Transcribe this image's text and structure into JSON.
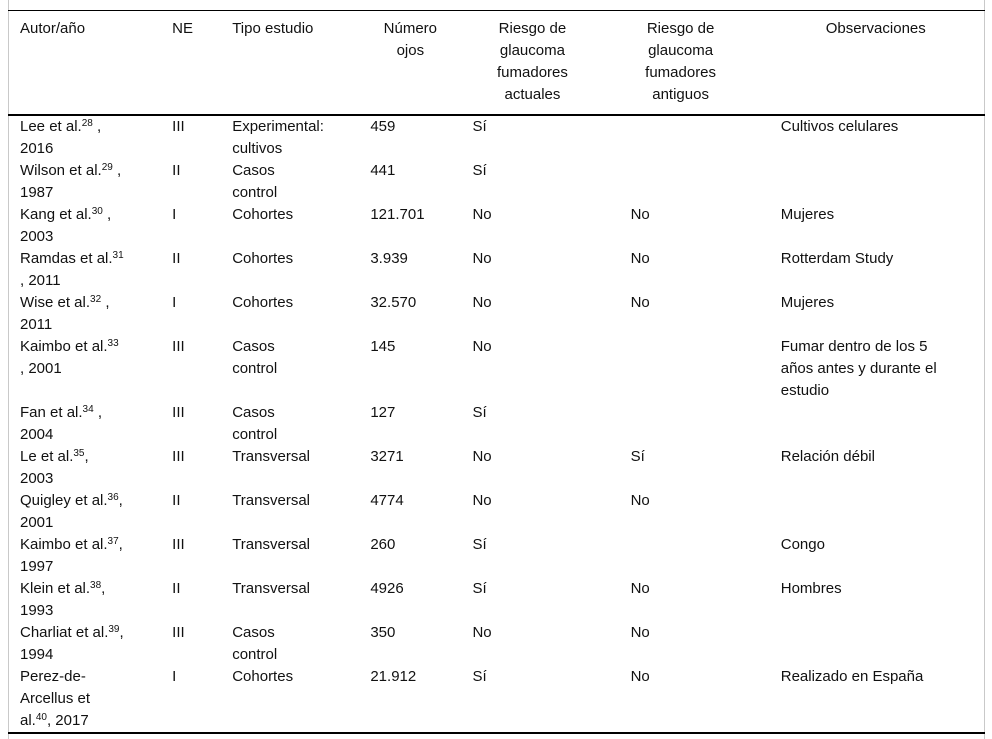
{
  "colors": {
    "text": "#111111",
    "rule": "#000000",
    "frame": "#c9c9c9",
    "background": "#ffffff"
  },
  "table": {
    "headers": [
      {
        "id": "autor",
        "label": "Autor/año"
      },
      {
        "id": "ne",
        "label": "NE"
      },
      {
        "id": "tipo",
        "label": "Tipo estudio"
      },
      {
        "id": "ojos",
        "label": "Número\nojos"
      },
      {
        "id": "riesgo_actuales",
        "label": "Riesgo de\nglaucoma\nfumadores\nactuales"
      },
      {
        "id": "riesgo_antiguos",
        "label": "Riesgo de\nglaucoma\nfumadores\nantiguos"
      },
      {
        "id": "observaciones",
        "label": "Observaciones"
      }
    ],
    "rows": [
      {
        "autor": [
          {
            "text": "Lee et al."
          },
          {
            "sup": "28"
          },
          {
            "text": " ,\n2016"
          }
        ],
        "ne": "III",
        "tipo": "Experimental:\ncultivos",
        "ojos": "459",
        "riesgo_actuales": "Sí",
        "riesgo_antiguos": "",
        "observaciones": "Cultivos celulares"
      },
      {
        "autor": [
          {
            "text": "Wilson et al."
          },
          {
            "sup": "29"
          },
          {
            "text": " ,\n1987"
          }
        ],
        "ne": "II",
        "tipo": "Casos\ncontrol",
        "ojos": "441",
        "riesgo_actuales": "Sí",
        "riesgo_antiguos": "",
        "observaciones": ""
      },
      {
        "autor": [
          {
            "text": "Kang et al."
          },
          {
            "sup": "30"
          },
          {
            "text": " ,\n2003"
          }
        ],
        "ne": "I",
        "tipo": "Cohortes",
        "ojos": "121.701",
        "riesgo_actuales": "No",
        "riesgo_antiguos": "No",
        "observaciones": "Mujeres"
      },
      {
        "autor": [
          {
            "text": "Ramdas et al."
          },
          {
            "sup": "31"
          },
          {
            "text": "\n, 2011"
          }
        ],
        "ne": "II",
        "tipo": "Cohortes",
        "ojos": "3.939",
        "riesgo_actuales": "No",
        "riesgo_antiguos": "No",
        "observaciones": "Rotterdam Study"
      },
      {
        "autor": [
          {
            "text": "Wise et al."
          },
          {
            "sup": "32"
          },
          {
            "text": " ,\n2011"
          }
        ],
        "ne": "I",
        "tipo": "Cohortes",
        "ojos": "32.570",
        "riesgo_actuales": "No",
        "riesgo_antiguos": "No",
        "observaciones": "Mujeres"
      },
      {
        "autor": [
          {
            "text": "Kaimbo et al."
          },
          {
            "sup": "33"
          },
          {
            "text": "\n, 2001"
          }
        ],
        "ne": "III",
        "tipo": "Casos\ncontrol",
        "ojos": "145",
        "riesgo_actuales": "No",
        "riesgo_antiguos": "",
        "observaciones": "Fumar dentro de los 5\naños antes y durante el\nestudio"
      },
      {
        "autor": [
          {
            "text": "Fan et al."
          },
          {
            "sup": "34"
          },
          {
            "text": " ,\n2004"
          }
        ],
        "ne": "III",
        "tipo": "Casos\ncontrol",
        "ojos": "127",
        "riesgo_actuales": "Sí",
        "riesgo_antiguos": "",
        "observaciones": ""
      },
      {
        "autor": [
          {
            "text": "Le et al."
          },
          {
            "sup": "35"
          },
          {
            "text": ",\n2003"
          }
        ],
        "ne": "III",
        "tipo": "Transversal",
        "ojos": "3271",
        "riesgo_actuales": "No",
        "riesgo_antiguos": "Sí",
        "observaciones": "Relación débil"
      },
      {
        "autor": [
          {
            "text": "Quigley et al."
          },
          {
            "sup": "36"
          },
          {
            "text": ",\n2001"
          }
        ],
        "ne": "II",
        "tipo": "Transversal",
        "ojos": "4774",
        "riesgo_actuales": "No",
        "riesgo_antiguos": "No",
        "observaciones": ""
      },
      {
        "autor": [
          {
            "text": "Kaimbo et al."
          },
          {
            "sup": "37"
          },
          {
            "text": ",\n1997"
          }
        ],
        "ne": "III",
        "tipo": "Transversal",
        "ojos": "260",
        "riesgo_actuales": "Sí",
        "riesgo_antiguos": "",
        "observaciones": "Congo"
      },
      {
        "autor": [
          {
            "text": "Klein et al."
          },
          {
            "sup": "38"
          },
          {
            "text": ",\n1993"
          }
        ],
        "ne": "II",
        "tipo": "Transversal",
        "ojos": "4926",
        "riesgo_actuales": "Sí",
        "riesgo_antiguos": "No",
        "observaciones": "Hombres"
      },
      {
        "autor": [
          {
            "text": "Charliat et al."
          },
          {
            "sup": "39"
          },
          {
            "text": ",\n1994"
          }
        ],
        "ne": "III",
        "tipo": "Casos\ncontrol",
        "ojos": "350",
        "riesgo_actuales": "No",
        "riesgo_antiguos": "No",
        "observaciones": ""
      },
      {
        "autor": [
          {
            "text": "Perez-de-\nArcellus et\nal."
          },
          {
            "sup": "40"
          },
          {
            "text": ", 2017"
          }
        ],
        "ne": "I",
        "tipo": "Cohortes",
        "ojos": "21.912",
        "riesgo_actuales": "Sí",
        "riesgo_antiguos": "No",
        "observaciones": "Realizado en España"
      }
    ]
  }
}
